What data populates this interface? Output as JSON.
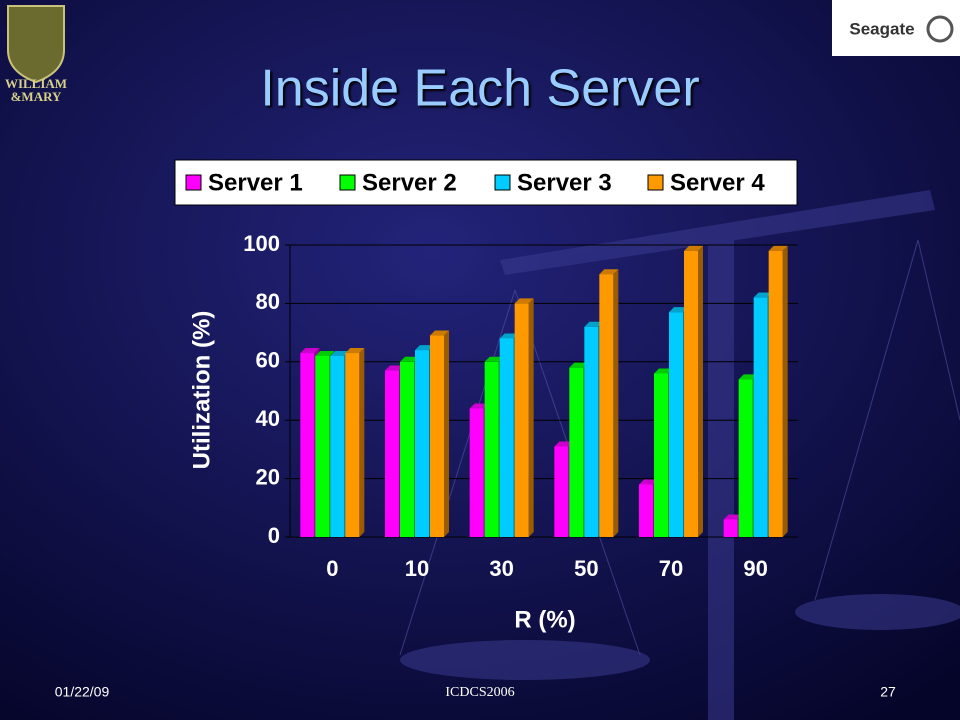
{
  "slide": {
    "logo_left": [
      "WILLIAM",
      "&MARY"
    ],
    "logo_right": "Seagate",
    "date": "01/22/09",
    "conference": "ICDCS2006",
    "page": "27"
  },
  "chart_data": {
    "type": "bar",
    "title": "Inside Each Server",
    "x_label": "R (%)",
    "y_label": "Utilization (%)",
    "categories": [
      "0",
      "10",
      "30",
      "50",
      "70",
      "90"
    ],
    "series": [
      {
        "name": "Server 1",
        "color": "#ff00ff",
        "values": [
          63,
          57,
          44,
          31,
          18,
          6
        ]
      },
      {
        "name": "Server 2",
        "color": "#00ff00",
        "values": [
          62,
          60,
          60,
          58,
          56,
          54
        ]
      },
      {
        "name": "Server 3",
        "color": "#00ccff",
        "values": [
          62,
          64,
          68,
          72,
          77,
          82
        ]
      },
      {
        "name": "Server 4",
        "color": "#ff9900",
        "values": [
          63,
          69,
          80,
          90,
          98,
          98
        ]
      }
    ],
    "ylim": [
      0,
      100
    ],
    "yticks": [
      0,
      20,
      40,
      60,
      80,
      100
    ],
    "grid": true,
    "legend": "top"
  }
}
